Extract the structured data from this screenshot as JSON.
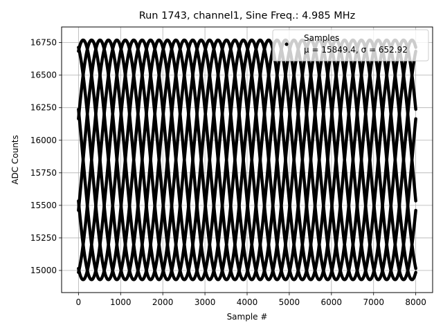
{
  "chart_data": {
    "type": "scatter",
    "title": "Run 1743, channel1, Sine Freq.: 4.985 MHz",
    "xlabel": "Sample #",
    "ylabel": "ADC Counts",
    "xlim": [
      -400,
      8400
    ],
    "ylim": [
      14830,
      16870
    ],
    "xticks": [
      0,
      1000,
      2000,
      3000,
      4000,
      5000,
      6000,
      7000,
      8000
    ],
    "yticks": [
      15000,
      15250,
      15500,
      15750,
      16000,
      16250,
      16500,
      16750
    ],
    "grid": true,
    "legend_position": "top-right",
    "series": [
      {
        "name": "Samples",
        "marker": "dot",
        "color": "#000000",
        "sample_count": 8000,
        "mean": 15849.4,
        "std": 652.92,
        "amplitude": 920,
        "offset": 15849.4,
        "sine_frequency_mhz": 4.985,
        "phase_lines": 8,
        "envelope_period_samples": 1600,
        "x_range": [
          0,
          8000
        ]
      }
    ],
    "legend": {
      "label": "Samples",
      "stats_text": "μ = 15849.4, σ = 652.92"
    }
  }
}
